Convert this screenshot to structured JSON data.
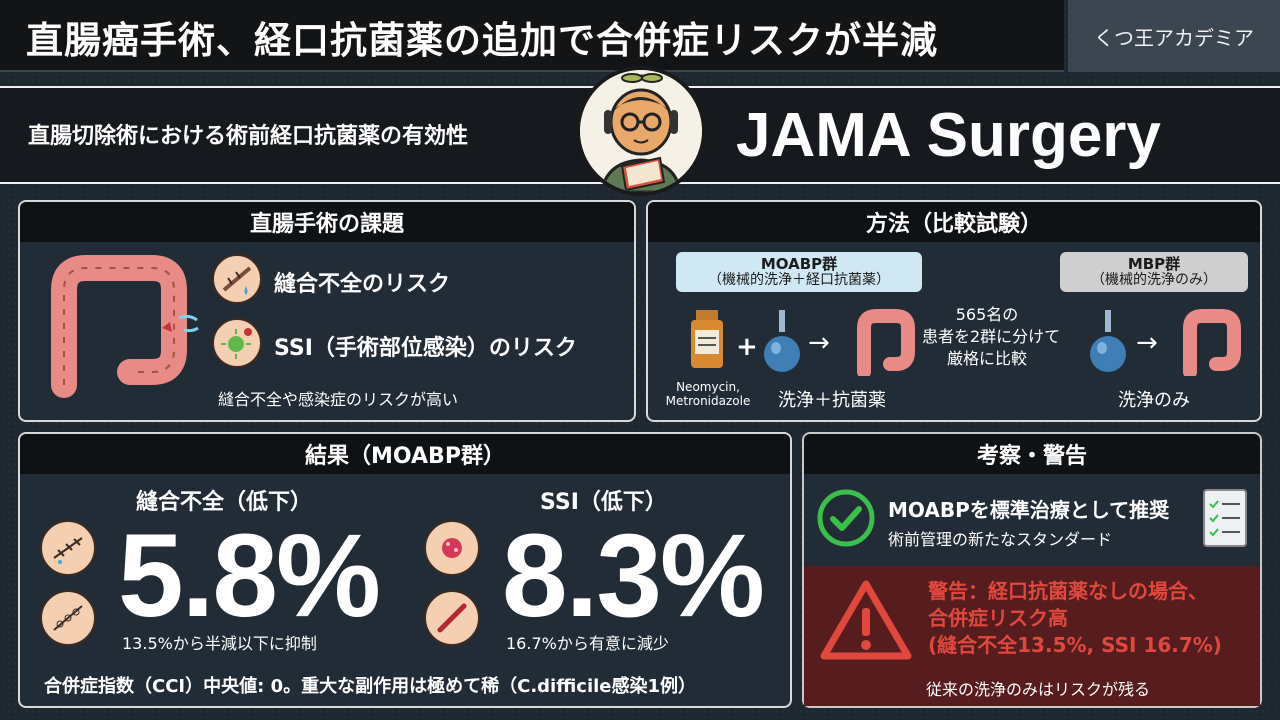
{
  "header": {
    "title": "直腸癌手術、経口抗菌薬の追加で合併症リスクが半減",
    "brand": "くつ王アカデミア"
  },
  "subheader": {
    "subtitle": "直腸切除術における術前経口抗菌薬の有効性",
    "journal": "JAMA Surgery"
  },
  "issue_panel": {
    "heading": "直腸手術の課題",
    "items": [
      {
        "icon": "torn-suture-icon",
        "label": "縫合不全のリスク"
      },
      {
        "icon": "bacteria-icon",
        "label": "SSI（手術部位感染）のリスク"
      }
    ],
    "note": "縫合不全や感染症のリスクが高い"
  },
  "method_panel": {
    "heading": "方法（比較試験）",
    "group_a": {
      "name": "MOABP群",
      "detail": "（機械的洗浄＋経口抗菌薬）",
      "caption": "洗浄＋抗菌薬"
    },
    "group_b": {
      "name": "MBP群",
      "detail": "（機械的洗浄のみ）",
      "caption": "洗浄のみ"
    },
    "drug_label_1": "Neomycin,",
    "drug_label_2": "Metronidazole",
    "plus": "+",
    "arrow": "→",
    "center_text_1": "565名の",
    "center_text_2": "患者を2群に分けて",
    "center_text_3": "厳格に比較"
  },
  "result_panel": {
    "heading": "結果（MOABP群）",
    "leak_title": "縫合不全（低下）",
    "leak_value": "5.8%",
    "leak_note": "13.5%から半減以下に抑制",
    "ssi_title": "SSI（低下）",
    "ssi_value": "8.3%",
    "ssi_note": "16.7%から有意に減少",
    "footer": "合併症指数（CCI）中央値: 0。重大な副作用は極めて稀（C.difficile感染1例）"
  },
  "discuss_panel": {
    "heading": "考察・警告",
    "recommend_title": "MOABPを標準治療として推奨",
    "recommend_sub": "術前管理の新たなスタンダード",
    "warn_1": "警告：経口抗菌薬なしの場合、",
    "warn_2": "合併症リスク高",
    "warn_3": "(縫合不全13.5%, SSI 16.7%)",
    "warn_footer": "従来の洗浄のみはリスクが残る"
  },
  "colors": {
    "accent_green": "#3bbf4a",
    "warning_red": "#e0483e",
    "group_a_bg": "#cfe8f4",
    "group_b_bg": "#cfcfcf",
    "colon": "#e88a85"
  }
}
